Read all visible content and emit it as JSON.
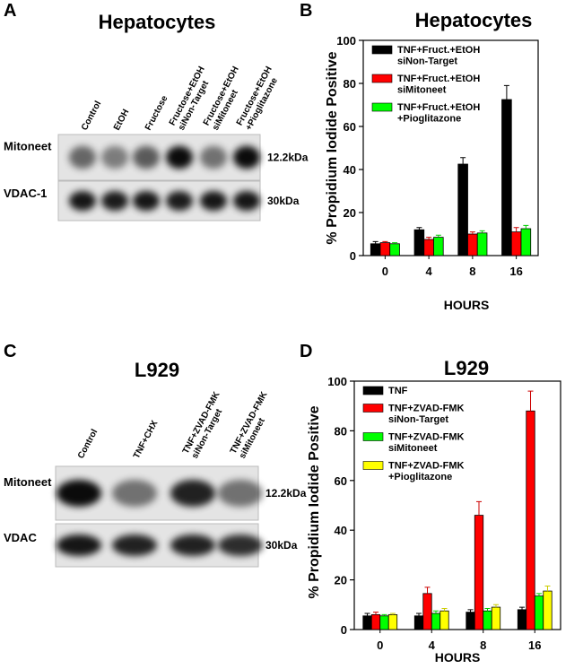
{
  "panels": [
    "A",
    "B",
    "C",
    "D"
  ],
  "blots": [
    {
      "title": "Hepatocytes",
      "lanes": [
        "Control",
        "EtOH",
        "Fructose",
        "Fructose+EtOH\nsiNon-Target",
        "Fructose+EtOH\nsiMitoneet",
        "Fructose+EtOH\n+Pioglitazone"
      ],
      "rows": [
        {
          "label": "Mitoneet",
          "size": "12.2kDa"
        },
        {
          "label": "VDAC-1",
          "size": "30kDa"
        }
      ]
    },
    {
      "title": "L929",
      "lanes": [
        "Control",
        "TNF+CHX",
        "TNF+ZVAD-FMK\nsiNon-Target",
        "TNF+ZVAD-FMK\nsiMitoneet"
      ],
      "rows": [
        {
          "label": "Mitoneet",
          "size": "12.2kDa"
        },
        {
          "label": "VDAC",
          "size": "30kDa"
        }
      ]
    }
  ],
  "chart_data": [
    {
      "type": "bar",
      "title": "Hepatocytes",
      "x_label": "HOURS",
      "y_label": "% Propidium Iodide Positive",
      "categories": [
        "0",
        "4",
        "8",
        "16"
      ],
      "ylim": [
        0,
        100
      ],
      "yticks": [
        0,
        20,
        40,
        60,
        80,
        100
      ],
      "legend": "upper left",
      "series": [
        {
          "name": "TNF+Fruct.+EtOH\nsiNon-Target",
          "color": "#000000",
          "values": [
            5.5,
            12,
            42.5,
            72.5
          ],
          "errors": [
            1,
            1,
            3,
            6.5
          ]
        },
        {
          "name": "TNF+Fruct.+EtOH\nsiMitoneet",
          "color": "#ff0000",
          "values": [
            6,
            7.5,
            10,
            11
          ],
          "errors": [
            0.5,
            1,
            1,
            2
          ]
        },
        {
          "name": "TNF+Fruct.+EtOH\n+Pioglitazone",
          "color": "#00ff00",
          "values": [
            5.5,
            8.5,
            10.5,
            12.5
          ],
          "errors": [
            0.5,
            1,
            1,
            1.5
          ]
        }
      ]
    },
    {
      "type": "bar",
      "title": "L929",
      "x_label": "HOURS",
      "y_label": "% Propidium Iodide Positive",
      "categories": [
        "0",
        "4",
        "8",
        "16"
      ],
      "ylim": [
        0,
        100
      ],
      "yticks": [
        0,
        20,
        40,
        60,
        80,
        100
      ],
      "legend": "upper left",
      "series": [
        {
          "name": "TNF",
          "color": "#000000",
          "values": [
            5.5,
            5.5,
            7,
            8
          ],
          "errors": [
            1,
            1,
            1,
            1
          ]
        },
        {
          "name": "TNF+ZVAD-FMK\nsiNon-Target",
          "color": "#ff0000",
          "values": [
            6,
            14.5,
            46,
            88
          ],
          "errors": [
            1,
            2.5,
            5.5,
            8
          ]
        },
        {
          "name": "TNF+ZVAD-FMK\nsiMitoneet",
          "color": "#00ff00",
          "values": [
            5.5,
            6.5,
            7.5,
            13.5
          ],
          "errors": [
            0.5,
            1,
            1,
            1
          ]
        },
        {
          "name": "TNF+ZVAD-FMK\n+Pioglitazone",
          "color": "#ffff00",
          "values": [
            6,
            7.5,
            9,
            15.5
          ],
          "errors": [
            0.5,
            1,
            1,
            2
          ]
        }
      ]
    }
  ]
}
